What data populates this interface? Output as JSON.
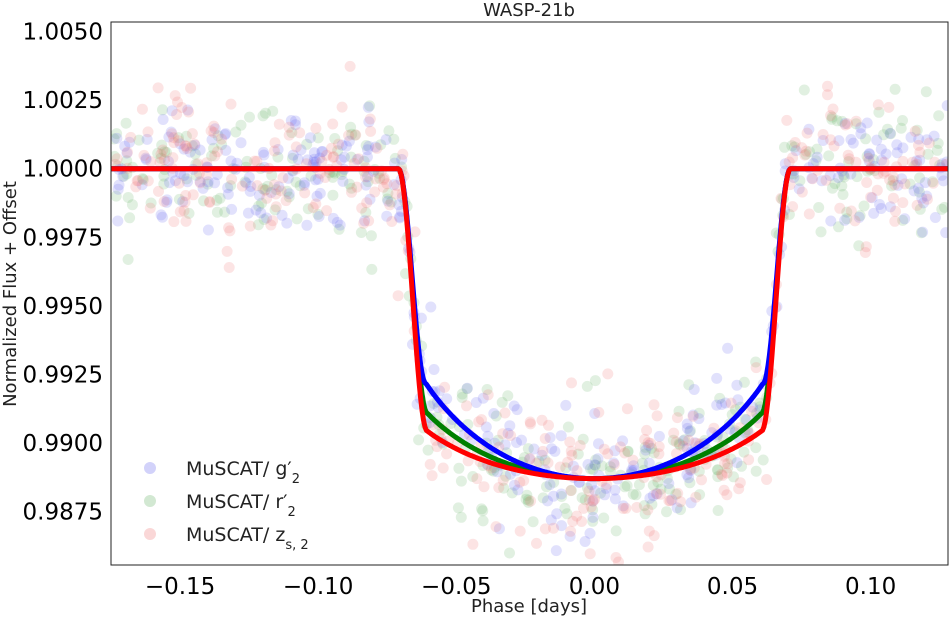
{
  "chart_data": {
    "type": "scatter",
    "title": "WASP-21b",
    "xlabel": "Phase [days]",
    "ylabel": "Normalized Flux + Offset",
    "xlim": [
      -0.175,
      0.128
    ],
    "ylim": [
      0.98555,
      1.00535
    ],
    "x_ticks": [
      -0.15,
      -0.1,
      -0.05,
      0.0,
      0.05,
      0.1
    ],
    "x_tick_labels": [
      "−0.15",
      "−0.10",
      "−0.05",
      "0.00",
      "0.05",
      "0.10"
    ],
    "y_ticks": [
      1.005,
      1.0025,
      1.0,
      0.9975,
      0.995,
      0.9925,
      0.99,
      0.9875
    ],
    "y_tick_labels": [
      "1.0050",
      "1.0025",
      "1.0000",
      "0.9975",
      "0.9950",
      "0.9925",
      "0.9900",
      "0.9875"
    ],
    "grid": false,
    "legend_position": "lower-left",
    "series": [
      {
        "name": "MuSCAT/ g′",
        "name_sub": "2",
        "point_color": "#6a6af0",
        "line_color": "#0000ff",
        "transit": {
          "t14_half": 0.071,
          "t23_half": 0.061,
          "depth": 0.0113,
          "limb_u": 0.8
        },
        "scatter_sigma": 0.0011
      },
      {
        "name": "MuSCAT/ r′",
        "name_sub": "2",
        "point_color": "#6ab46a",
        "line_color": "#008000",
        "transit": {
          "t14_half": 0.071,
          "t23_half": 0.0605,
          "depth": 0.0113,
          "limb_u": 0.55
        },
        "scatter_sigma": 0.0012
      },
      {
        "name": "MuSCAT/ z",
        "name_sub": "s, 2",
        "point_color": "#f07a7a",
        "line_color": "#ff0000",
        "transit": {
          "t14_half": 0.071,
          "t23_half": 0.0605,
          "depth": 0.0113,
          "limb_u": 0.4
        },
        "scatter_sigma": 0.0012
      }
    ]
  }
}
